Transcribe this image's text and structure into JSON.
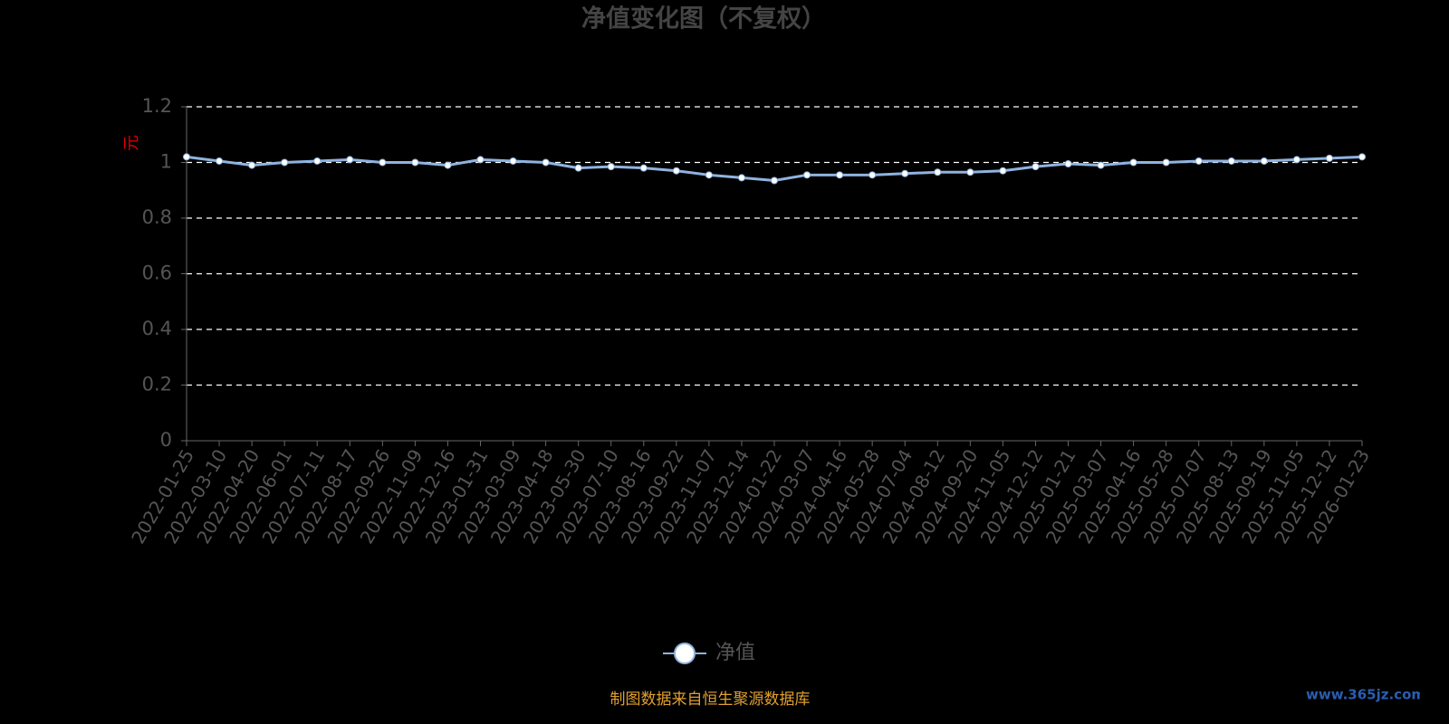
{
  "chart_data": {
    "type": "line",
    "title": "净值变化图（不复权）",
    "y_label": "元",
    "categories": [
      "2022-01-25",
      "2022-03-10",
      "2022-04-20",
      "2022-06-01",
      "2022-07-11",
      "2022-08-17",
      "2022-09-26",
      "2022-11-09",
      "2022-12-16",
      "2023-01-31",
      "2023-03-09",
      "2023-04-18",
      "2023-05-30",
      "2023-07-10",
      "2023-08-16",
      "2023-09-22",
      "2023-11-07",
      "2023-12-14",
      "2024-01-22",
      "2024-03-07",
      "2024-04-16",
      "2024-05-28",
      "2024-07-04",
      "2024-08-12",
      "2024-09-20",
      "2024-11-05",
      "2024-12-12",
      "2025-01-21",
      "2025-03-07",
      "2025-04-16",
      "2025-05-28",
      "2025-07-07",
      "2025-08-13",
      "2025-09-19",
      "2025-11-05",
      "2025-12-12",
      "2026-01-23"
    ],
    "series": [
      {
        "name": "净值",
        "color": "#8fb3e0",
        "values": [
          1.02,
          1.005,
          0.99,
          1.0,
          1.005,
          1.01,
          1.0,
          1.0,
          0.99,
          1.01,
          1.005,
          1.0,
          0.98,
          0.985,
          0.98,
          0.97,
          0.955,
          0.945,
          0.935,
          0.955,
          0.955,
          0.955,
          0.96,
          0.965,
          0.965,
          0.97,
          0.985,
          0.995,
          0.99,
          1.0,
          1.0,
          1.005,
          1.005,
          1.005,
          1.01,
          1.015,
          1.02
        ]
      }
    ],
    "ylim": [
      0,
      1.2
    ],
    "yticks": [
      0,
      0.2,
      0.4,
      0.6,
      0.8,
      1,
      1.2
    ],
    "grid": true,
    "source": "制图数据来自恒生聚源数据库",
    "watermark": "www.365jz.com"
  }
}
